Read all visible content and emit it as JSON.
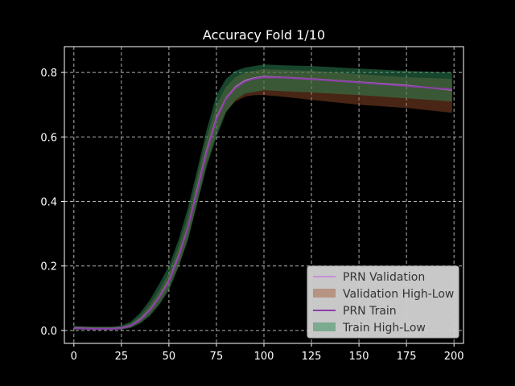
{
  "chart_data": {
    "type": "line",
    "title": "Accuracy Fold 1/10",
    "xlabel": "",
    "ylabel": "",
    "xlim": [
      -5,
      205
    ],
    "ylim": [
      -0.04,
      0.88
    ],
    "xticks": [
      0,
      25,
      50,
      75,
      100,
      125,
      150,
      175,
      200
    ],
    "yticks": [
      0.0,
      0.2,
      0.4,
      0.6,
      0.8
    ],
    "xtick_labels": [
      "0",
      "25",
      "50",
      "75",
      "100",
      "125",
      "150",
      "175",
      "200"
    ],
    "ytick_labels": [
      "0.0",
      "0.2",
      "0.4",
      "0.6",
      "0.8"
    ],
    "grid": true,
    "legend_position": "lower-right",
    "colors": {
      "background": "#000000",
      "axes": "#ffffff",
      "grid": "#b0b0b0",
      "validation_line": "#c77dd8",
      "validation_band": "#a0522d",
      "train_line": "#8b3fa8",
      "train_band": "#2e8b57",
      "legend_box": "#d3d3d3"
    },
    "series": [
      {
        "name": "PRN Validation",
        "kind": "line",
        "x": [
          0,
          10,
          20,
          25,
          30,
          35,
          40,
          45,
          50,
          55,
          60,
          65,
          70,
          75,
          80,
          85,
          90,
          95,
          100,
          110,
          125,
          150,
          175,
          199
        ],
        "values": [
          0.008,
          0.006,
          0.006,
          0.008,
          0.016,
          0.035,
          0.065,
          0.105,
          0.155,
          0.23,
          0.32,
          0.44,
          0.56,
          0.66,
          0.72,
          0.755,
          0.775,
          0.783,
          0.787,
          0.785,
          0.78,
          0.77,
          0.76,
          0.745
        ]
      },
      {
        "name": "Validation High-Low",
        "kind": "band",
        "x": [
          0,
          10,
          20,
          25,
          30,
          35,
          40,
          45,
          50,
          55,
          60,
          65,
          70,
          75,
          80,
          85,
          90,
          95,
          100,
          110,
          125,
          150,
          175,
          199
        ],
        "high": [
          0.012,
          0.01,
          0.01,
          0.012,
          0.022,
          0.045,
          0.08,
          0.125,
          0.18,
          0.26,
          0.355,
          0.48,
          0.6,
          0.7,
          0.755,
          0.785,
          0.8,
          0.806,
          0.81,
          0.808,
          0.805,
          0.795,
          0.785,
          0.78
        ],
        "low": [
          0.004,
          0.003,
          0.003,
          0.004,
          0.01,
          0.026,
          0.05,
          0.085,
          0.13,
          0.2,
          0.285,
          0.4,
          0.52,
          0.61,
          0.68,
          0.71,
          0.725,
          0.73,
          0.73,
          0.725,
          0.715,
          0.7,
          0.69,
          0.675
        ]
      },
      {
        "name": "PRN Train",
        "kind": "line",
        "x": [
          0,
          10,
          20,
          25,
          30,
          35,
          40,
          45,
          50,
          55,
          60,
          65,
          70,
          75,
          80,
          85,
          90,
          95,
          100,
          110,
          125,
          150,
          175,
          199
        ],
        "values": [
          0.007,
          0.005,
          0.005,
          0.007,
          0.015,
          0.033,
          0.063,
          0.103,
          0.152,
          0.226,
          0.318,
          0.435,
          0.555,
          0.655,
          0.718,
          0.752,
          0.772,
          0.781,
          0.785,
          0.784,
          0.779,
          0.769,
          0.758,
          0.747
        ]
      },
      {
        "name": "Train High-Low",
        "kind": "band",
        "x": [
          0,
          10,
          20,
          25,
          30,
          35,
          40,
          45,
          50,
          55,
          60,
          65,
          70,
          75,
          80,
          85,
          90,
          95,
          100,
          110,
          125,
          150,
          175,
          199
        ],
        "high": [
          0.014,
          0.012,
          0.012,
          0.015,
          0.028,
          0.055,
          0.095,
          0.145,
          0.2,
          0.28,
          0.38,
          0.5,
          0.625,
          0.73,
          0.78,
          0.805,
          0.815,
          0.82,
          0.825,
          0.822,
          0.82,
          0.812,
          0.805,
          0.8
        ],
        "low": [
          0.003,
          0.002,
          0.002,
          0.003,
          0.008,
          0.022,
          0.045,
          0.08,
          0.125,
          0.195,
          0.28,
          0.395,
          0.51,
          0.6,
          0.675,
          0.715,
          0.735,
          0.74,
          0.745,
          0.742,
          0.738,
          0.73,
          0.72,
          0.71
        ]
      }
    ]
  }
}
